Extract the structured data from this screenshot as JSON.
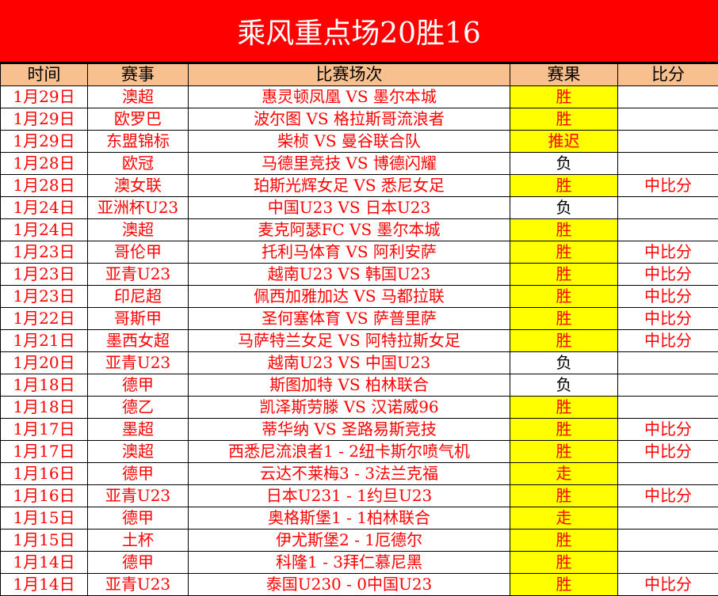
{
  "title": "乘风重点场20胜16",
  "headers": [
    "时间",
    "赛事",
    "比赛场次",
    "赛果",
    "比分"
  ],
  "colors": {
    "title_bg": "#fe0000",
    "header_bg": "#f8bf8f",
    "highlight": "#ffff00",
    "text": "#ff0000"
  },
  "rows": [
    {
      "date": "1月29日",
      "league": "澳超",
      "match": "惠灵顿凤凰 VS 墨尔本城",
      "result": "胜",
      "score": ""
    },
    {
      "date": "1月29日",
      "league": "欧罗巴",
      "match": "波尔图 VS 格拉斯哥流浪者",
      "result": "胜",
      "score": ""
    },
    {
      "date": "1月29日",
      "league": "东盟锦标",
      "match": "柴桢 VS 曼谷联合队",
      "result": "推迟",
      "score": ""
    },
    {
      "date": "1月28日",
      "league": "欧冠",
      "match": "马德里竞技 VS 博德闪耀",
      "result": "负",
      "score": ""
    },
    {
      "date": "1月28日",
      "league": "澳女联",
      "match": "珀斯光辉女足 VS 悉尼女足",
      "result": "胜",
      "score": "中比分"
    },
    {
      "date": "1月24日",
      "league": "亚洲杯U23",
      "match": "中国U23 VS 日本U23",
      "result": "负",
      "score": ""
    },
    {
      "date": "1月24日",
      "league": "澳超",
      "match": "麦克阿瑟FC VS 墨尔本城",
      "result": "胜",
      "score": ""
    },
    {
      "date": "1月23日",
      "league": "哥伦甲",
      "match": "托利马体育 VS 阿利安萨",
      "result": "胜",
      "score": "中比分"
    },
    {
      "date": "1月23日",
      "league": "亚青U23",
      "match": "越南U23 VS 韩国U23",
      "result": "胜",
      "score": "中比分"
    },
    {
      "date": "1月23日",
      "league": "印尼超",
      "match": "佩西加雅加达 VS 马都拉联",
      "result": "胜",
      "score": "中比分"
    },
    {
      "date": "1月22日",
      "league": "哥斯甲",
      "match": "圣何塞体育 VS 萨普里萨",
      "result": "胜",
      "score": "中比分"
    },
    {
      "date": "1月21日",
      "league": "墨西女超",
      "match": "马萨特兰女足 VS 阿特拉斯女足",
      "result": "胜",
      "score": "中比分"
    },
    {
      "date": "1月20日",
      "league": "亚青U23",
      "match": "越南U23 VS 中国U23",
      "result": "负",
      "score": ""
    },
    {
      "date": "1月18日",
      "league": "德甲",
      "match": "斯图加特 VS 柏林联合",
      "result": "负",
      "score": ""
    },
    {
      "date": "1月18日",
      "league": "德乙",
      "match": "凯泽斯劳滕 VS 汉诺威96",
      "result": "胜",
      "score": ""
    },
    {
      "date": "1月17日",
      "league": "墨超",
      "match": "蒂华纳 VS 圣路易斯竞技",
      "result": "胜",
      "score": "中比分"
    },
    {
      "date": "1月17日",
      "league": "澳超",
      "match": "西悉尼流浪者1 - 2纽卡斯尔喷气机",
      "result": "胜",
      "score": "中比分"
    },
    {
      "date": "1月16日",
      "league": "德甲",
      "match": "云达不莱梅3 - 3法兰克福",
      "result": "走",
      "score": ""
    },
    {
      "date": "1月16日",
      "league": "亚青U23",
      "match": "日本U231 - 1约旦U23",
      "result": "胜",
      "score": "中比分"
    },
    {
      "date": "1月15日",
      "league": "德甲",
      "match": "奥格斯堡1 - 1柏林联合",
      "result": "走",
      "score": ""
    },
    {
      "date": "1月15日",
      "league": "土杯",
      "match": "伊尤斯堡2 - 1厄德尔",
      "result": "胜",
      "score": ""
    },
    {
      "date": "1月14日",
      "league": "德甲",
      "match": "科隆1 - 3拜仁慕尼黑",
      "result": "胜",
      "score": ""
    },
    {
      "date": "1月14日",
      "league": "亚青U23",
      "match": "泰国U230 - 0中国U23",
      "result": "胜",
      "score": "中比分"
    }
  ]
}
